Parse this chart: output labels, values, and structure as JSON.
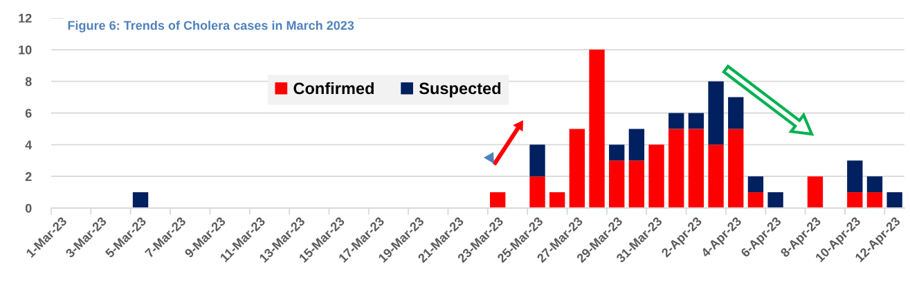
{
  "chart_data": {
    "type": "bar",
    "title": "Figure 6: Trends of Cholera cases in March 2023",
    "categories": [
      "1-Mar-23",
      null,
      "3-Mar-23",
      null,
      "5-Mar-23",
      null,
      "7-Mar-23",
      null,
      "9-Mar-23",
      null,
      "11-Mar-23",
      null,
      "13-Mar-23",
      null,
      "15-Mar-23",
      null,
      "17-Mar-23",
      null,
      "19-Mar-23",
      null,
      "21-Mar-23",
      null,
      "23-Mar-23",
      null,
      "25-Mar-23",
      null,
      "27-Mar-23",
      null,
      "29-Mar-23",
      null,
      "31-Mar-23",
      null,
      "2-Apr-23",
      null,
      "4-Apr-23",
      null,
      "6-Apr-23",
      null,
      "8-Apr-23",
      null,
      "10-Apr-23",
      null,
      "12-Apr-23"
    ],
    "series": [
      {
        "name": "Confirmed",
        "color": "#ff0000",
        "values": [
          0,
          0,
          0,
          0,
          0,
          0,
          0,
          0,
          0,
          0,
          0,
          0,
          0,
          0,
          0,
          0,
          0,
          0,
          0,
          0,
          0,
          0,
          1,
          0,
          2,
          1,
          5,
          10,
          3,
          3,
          4,
          5,
          5,
          4,
          5,
          1,
          0,
          0,
          2,
          0,
          1,
          1,
          0
        ]
      },
      {
        "name": "Suspected",
        "color": "#002060",
        "values": [
          0,
          0,
          0,
          0,
          1,
          0,
          0,
          0,
          0,
          0,
          0,
          0,
          0,
          0,
          0,
          0,
          0,
          0,
          0,
          0,
          0,
          0,
          0,
          0,
          2,
          0,
          0,
          0,
          1,
          2,
          0,
          1,
          1,
          4,
          2,
          1,
          1,
          0,
          0,
          0,
          2,
          1,
          1
        ]
      }
    ],
    "stacked": true,
    "ylim": [
      0,
      12
    ],
    "yticks": [
      0,
      2,
      4,
      6,
      8,
      10,
      12
    ],
    "grid": "y",
    "legend": "top"
  }
}
